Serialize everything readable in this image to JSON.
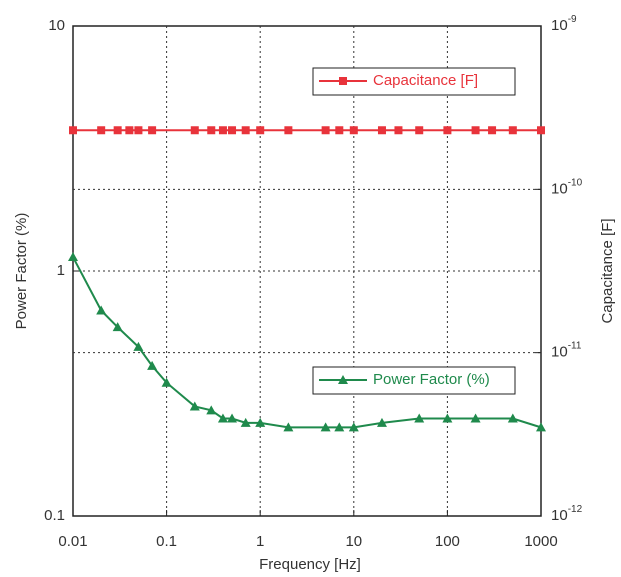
{
  "chart_data": {
    "type": "line",
    "xlabel": "Frequency [Hz]",
    "ylabel": "Power Factor (%)",
    "y2label": "Capacitance [F]",
    "xscale": "log",
    "yscale": "log",
    "y2scale": "log",
    "grid": true,
    "xlim": [
      0.01,
      1000
    ],
    "xticks": [
      0.01,
      0.1,
      1,
      10,
      100,
      1000
    ],
    "ylim": [
      0.1,
      10
    ],
    "yticks": [
      0.1,
      1,
      10
    ],
    "y2lim": [
      1e-12,
      1e-09
    ],
    "y2ticks": [
      {
        "value": 1e-12,
        "label": "10^-12"
      },
      {
        "value": 1e-11,
        "label": "10^-11"
      },
      {
        "value": 1e-10,
        "label": "10^-10"
      },
      {
        "value": 1e-09,
        "label": "10^-9"
      }
    ],
    "series": [
      {
        "name": "Capacitance [F]",
        "color": "#e8333b",
        "marker": "square",
        "axis": "y2",
        "x": [
          0.01,
          0.02,
          0.03,
          0.04,
          0.05,
          0.07,
          0.2,
          0.3,
          0.4,
          0.5,
          0.7,
          1,
          2,
          5,
          7,
          10,
          20,
          30,
          50,
          100,
          200,
          300,
          500,
          1000
        ],
        "values": [
          2.3e-10,
          2.3e-10,
          2.3e-10,
          2.3e-10,
          2.3e-10,
          2.3e-10,
          2.3e-10,
          2.3e-10,
          2.3e-10,
          2.3e-10,
          2.3e-10,
          2.3e-10,
          2.3e-10,
          2.3e-10,
          2.3e-10,
          2.3e-10,
          2.3e-10,
          2.3e-10,
          2.3e-10,
          2.3e-10,
          2.3e-10,
          2.3e-10,
          2.3e-10,
          2.3e-10
        ]
      },
      {
        "name": "Power Factor (%)",
        "color": "#1f8a4c",
        "marker": "triangle",
        "axis": "y",
        "x": [
          0.01,
          0.02,
          0.03,
          0.05,
          0.07,
          0.1,
          0.2,
          0.3,
          0.4,
          0.5,
          0.7,
          1,
          2,
          5,
          7,
          10,
          20,
          50,
          100,
          200,
          500,
          1000
        ],
        "values": [
          1.14,
          0.69,
          0.59,
          0.49,
          0.41,
          0.35,
          0.28,
          0.27,
          0.25,
          0.25,
          0.24,
          0.24,
          0.23,
          0.23,
          0.23,
          0.23,
          0.24,
          0.25,
          0.25,
          0.25,
          0.25,
          0.23
        ]
      }
    ]
  }
}
